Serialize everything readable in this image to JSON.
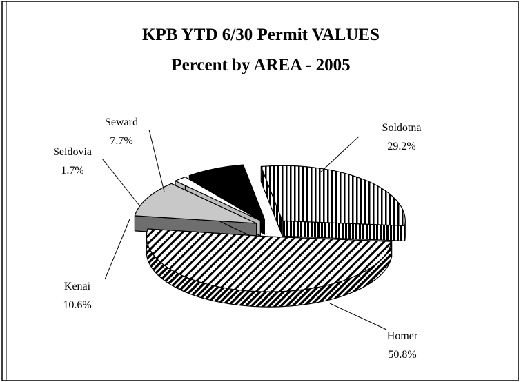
{
  "chart_data": {
    "type": "pie",
    "title": "KPB YTD 6/30 Permit VALUES",
    "subtitle": "Percent by AREA - 2005",
    "categories": [
      "Soldotna",
      "Homer",
      "Kenai",
      "Seldovia",
      "Seward"
    ],
    "values": [
      29.2,
      50.8,
      10.6,
      1.7,
      7.7
    ],
    "value_labels": [
      "29.2%",
      "50.8%",
      "10.6%",
      "1.7%",
      "7.7%"
    ],
    "colors": [
      "#ffffff",
      "#ffffff",
      "#c8c8c8",
      "#ffffff",
      "#000000"
    ],
    "patterns": [
      "vertical",
      "diagonal",
      "none",
      "none",
      "none"
    ],
    "exploded": true,
    "three_d": true
  }
}
